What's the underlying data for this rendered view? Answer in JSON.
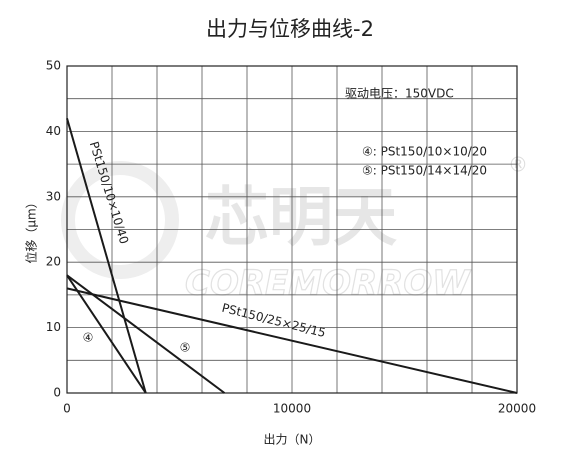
{
  "chart_data": {
    "type": "line",
    "title": "出力与位移曲线-2",
    "xlabel": "出力（N）",
    "ylabel": "位移（μm）",
    "annotation": "驱动电压：150VDC",
    "legend": [
      "④: PSt150/10×10/20",
      "⑤: PSt150/14×14/20"
    ],
    "watermark": [
      "芯明天",
      "COREMORROW",
      "®"
    ],
    "xlim": [
      0,
      20000
    ],
    "ylim": [
      0,
      50
    ],
    "xticks": [
      0,
      10000,
      20000
    ],
    "yticks": [
      0,
      10,
      20,
      30,
      40,
      50
    ],
    "xgrid": [
      0,
      2000,
      4000,
      6000,
      8000,
      10000,
      12000,
      14000,
      16000,
      18000,
      20000
    ],
    "ygrid": [
      0,
      5,
      10,
      15,
      20,
      25,
      30,
      35,
      40,
      45,
      50
    ],
    "color": "#1a1a1a",
    "series": [
      {
        "name": "PSt150/10×10/40",
        "x": [
          0,
          3500
        ],
        "values": [
          42,
          0
        ]
      },
      {
        "name": "④",
        "x": [
          0,
          3500
        ],
        "values": [
          18,
          0
        ]
      },
      {
        "name": "⑤",
        "x": [
          0,
          7000
        ],
        "values": [
          18,
          0
        ]
      },
      {
        "name": "PSt150/25×25/15",
        "x": [
          0,
          20000
        ],
        "values": [
          16,
          0
        ]
      }
    ]
  }
}
